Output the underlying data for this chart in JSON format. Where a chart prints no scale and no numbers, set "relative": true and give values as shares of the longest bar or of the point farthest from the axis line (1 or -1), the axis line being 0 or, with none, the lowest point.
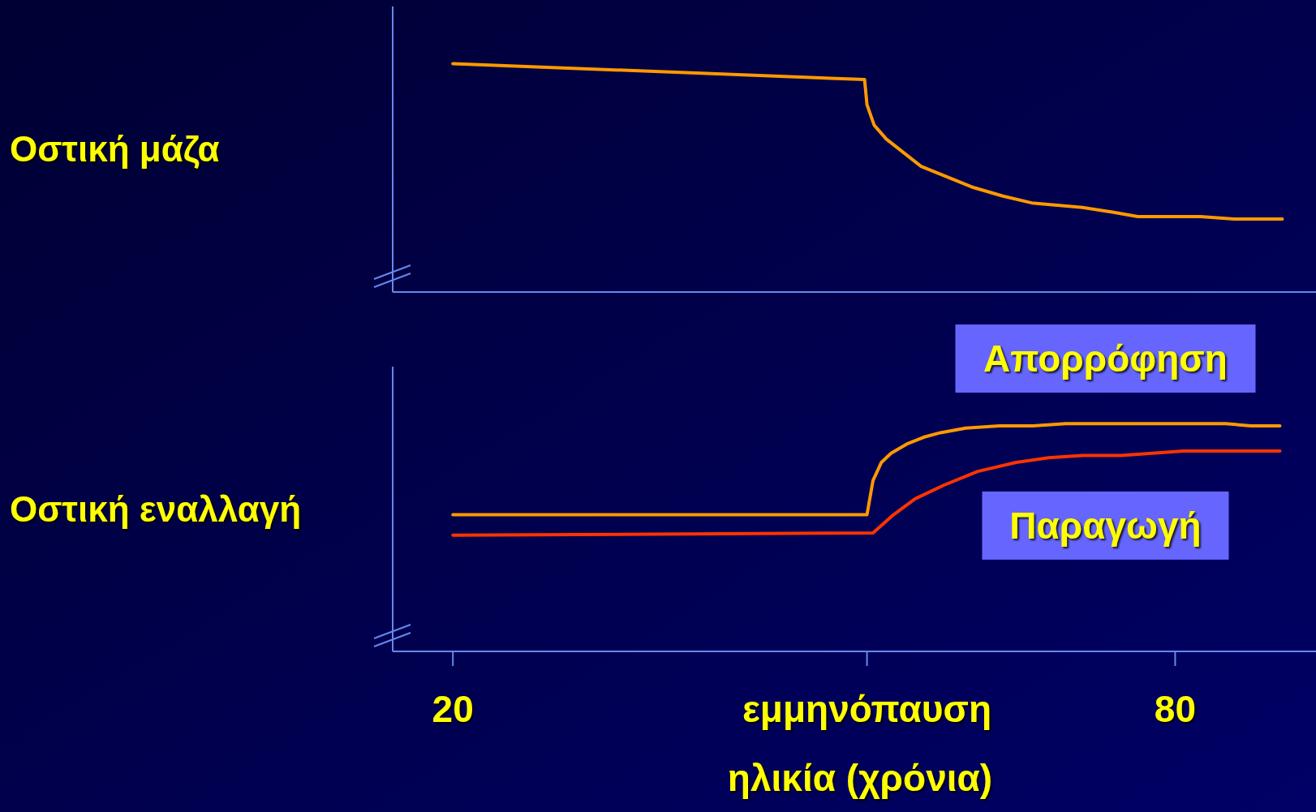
{
  "chart_data": [
    {
      "type": "line",
      "relative": true,
      "ylabel": "Οστική μάζα",
      "xlim": [
        15,
        91.7
      ],
      "tick_labels": false,
      "series": [
        {
          "color": "#ff9900",
          "x": [
            20,
            54.2,
            54.4,
            55.0,
            56.0,
            58.9,
            63.1,
            65.7,
            68.1,
            72.3,
            74.8,
            76.9,
            80,
            82.1,
            84.9,
            88.9
          ],
          "values": [
            1,
            0.93,
            0.82,
            0.73,
            0.67,
            0.55,
            0.46,
            0.42,
            0.39,
            0.37,
            0.35,
            0.33,
            0.33,
            0.33,
            0.32,
            0.32
          ]
        }
      ]
    },
    {
      "type": "line",
      "relative": true,
      "ylabel": "Οστική εναλλαγή",
      "xlabel": "ηλικία (χρόνια)",
      "xlim": [
        15,
        91.7
      ],
      "xticks": [
        20,
        {
          "value": 54.4,
          "label": "εμμηνόπαυση"
        },
        80
      ],
      "tick_labels": "x",
      "series": [
        {
          "name": "Απορρόφηση",
          "color": "#ff9900",
          "x": [
            20,
            54.4,
            54.9,
            55.6,
            56.4,
            57.7,
            59.1,
            60.5,
            62.6,
            65.4,
            68.2,
            70.9,
            76.5,
            84.2,
            86.3,
            88.7
          ],
          "values": [
            0.6,
            0.6,
            0.75,
            0.83,
            0.87,
            0.91,
            0.94,
            0.96,
            0.98,
            0.99,
            0.99,
            1,
            1,
            1,
            0.99,
            0.99
          ]
        },
        {
          "name": "Παραγωγή",
          "color": "#ff3300",
          "x": [
            20,
            54.9,
            56.6,
            58.4,
            60.8,
            63.6,
            66.8,
            69.5,
            72.3,
            75.5,
            80.7,
            82.8,
            88.7
          ],
          "values": [
            0.51,
            0.52,
            0.6,
            0.67,
            0.73,
            0.79,
            0.83,
            0.85,
            0.86,
            0.86,
            0.88,
            0.88,
            0.88
          ]
        }
      ]
    }
  ]
}
